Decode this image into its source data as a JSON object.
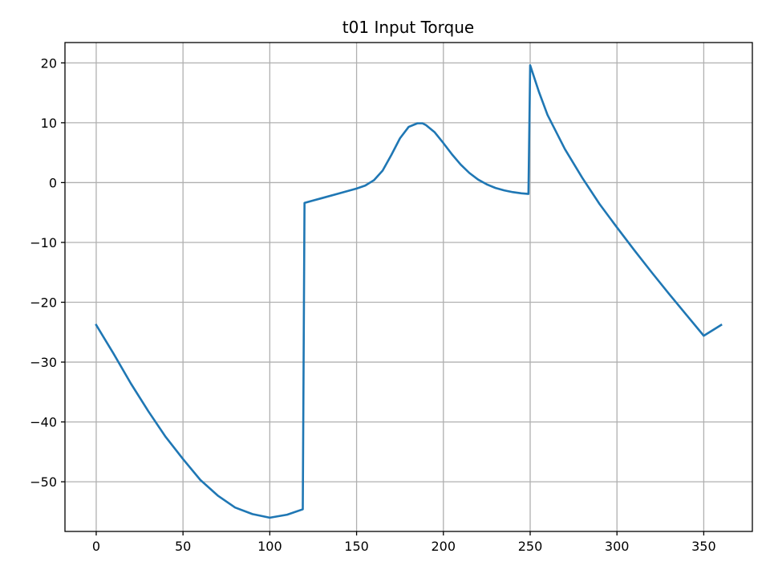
{
  "chart_data": {
    "type": "line",
    "title": "t01 Input Torque",
    "xlabel": "",
    "ylabel": "",
    "xlim": [
      -18,
      378
    ],
    "ylim": [
      -58.3,
      23.4
    ],
    "xticks": [
      0,
      50,
      100,
      150,
      200,
      250,
      300,
      350
    ],
    "yticks": [
      -50,
      -40,
      -30,
      -20,
      -10,
      0,
      10,
      20
    ],
    "grid": true,
    "color": "#1f77b4",
    "series": [
      {
        "x": [
          0,
          10,
          20,
          30,
          40,
          50,
          60,
          70,
          80,
          90,
          100,
          110,
          119,
          120,
          125,
          130,
          140,
          150,
          155,
          160,
          165,
          170,
          175,
          180,
          185,
          188,
          190,
          195,
          200,
          205,
          210,
          215,
          220,
          225,
          230,
          235,
          240,
          245,
          249,
          250,
          255,
          260,
          270,
          280,
          290,
          300,
          310,
          320,
          330,
          340,
          350,
          360
        ],
        "values": [
          -23.8,
          -28.6,
          -33.6,
          -38.2,
          -42.5,
          -46.2,
          -49.7,
          -52.3,
          -54.3,
          -55.4,
          -56.0,
          -55.5,
          -54.6,
          -3.4,
          -3.0,
          -2.6,
          -1.8,
          -1.0,
          -0.5,
          0.4,
          2.0,
          4.6,
          7.4,
          9.3,
          9.9,
          9.9,
          9.6,
          8.4,
          6.6,
          4.7,
          3.0,
          1.6,
          0.5,
          -0.3,
          -0.9,
          -1.3,
          -1.6,
          -1.8,
          -1.9,
          19.6,
          15.2,
          11.3,
          5.6,
          0.8,
          -3.6,
          -7.5,
          -11.3,
          -15.0,
          -18.6,
          -22.1,
          -25.6,
          -23.8
        ]
      }
    ]
  }
}
